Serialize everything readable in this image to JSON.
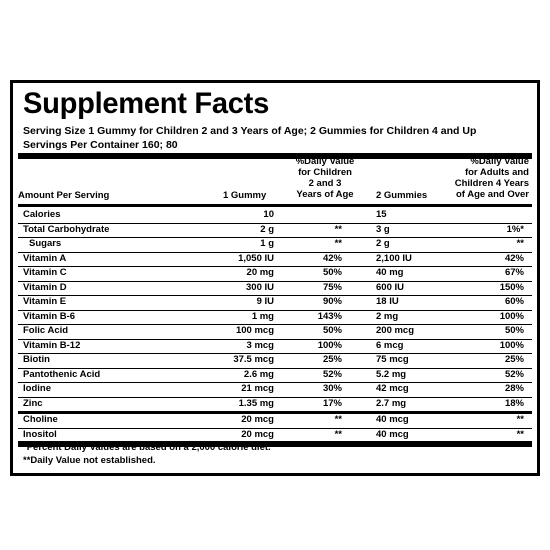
{
  "title": "Supplement Facts",
  "serving_size": "Serving Size 1 Gummy for Children 2 and 3 Years of Age; 2 Gummies for Children 4 and Up",
  "servings_per_container": "Servings Per Container 160; 80",
  "headers": {
    "amount": "Amount Per Serving",
    "qty1": "1 Gummy",
    "dv1": "%Daily Value\nfor Children\n2 and 3\nYears of Age",
    "qty2": "2 Gummies",
    "dv2": "%Daily Value\nfor Adults and\nChildren 4 Years\nof Age and Over"
  },
  "rows": [
    {
      "name": "Calories",
      "q1": "10",
      "d1": "",
      "q2": "15",
      "d2": ""
    },
    {
      "name": "Total Carbohydrate",
      "q1": "2 g",
      "d1": "**",
      "q2": "3 g",
      "d2": "1%*"
    },
    {
      "name": "Sugars",
      "q1": "1 g",
      "d1": "**",
      "q2": "2 g",
      "d2": "**",
      "indent": true
    },
    {
      "name": "Vitamin A",
      "q1": "1,050 IU",
      "d1": "42%",
      "q2": "2,100 IU",
      "d2": "42%"
    },
    {
      "name": "Vitamin C",
      "q1": "20 mg",
      "d1": "50%",
      "q2": "40 mg",
      "d2": "67%"
    },
    {
      "name": "Vitamin D",
      "q1": "300 IU",
      "d1": "75%",
      "q2": "600 IU",
      "d2": "150%"
    },
    {
      "name": "Vitamin E",
      "q1": "9 IU",
      "d1": "90%",
      "q2": "18 IU",
      "d2": "60%"
    },
    {
      "name": "Vitamin B-6",
      "q1": "1 mg",
      "d1": "143%",
      "q2": "2 mg",
      "d2": "100%"
    },
    {
      "name": "Folic Acid",
      "q1": "100 mcg",
      "d1": "50%",
      "q2": "200 mcg",
      "d2": "50%"
    },
    {
      "name": "Vitamin B-12",
      "q1": "3 mcg",
      "d1": "100%",
      "q2": "6 mcg",
      "d2": "100%"
    },
    {
      "name": "Biotin",
      "q1": "37.5 mcg",
      "d1": "25%",
      "q2": "75 mcg",
      "d2": "25%"
    },
    {
      "name": "Pantothenic Acid",
      "q1": "2.6 mg",
      "d1": "52%",
      "q2": "5.2 mg",
      "d2": "52%"
    },
    {
      "name": "Iodine",
      "q1": "21 mcg",
      "d1": "30%",
      "q2": "42 mcg",
      "d2": "28%"
    },
    {
      "name": "Zinc",
      "q1": "1.35 mg",
      "d1": "17%",
      "q2": "2.7 mg",
      "d2": "18%"
    },
    {
      "name": "Choline",
      "q1": "20 mcg",
      "d1": "**",
      "q2": "40 mcg",
      "d2": "**"
    },
    {
      "name": "Inositol",
      "q1": "20 mcg",
      "d1": "**",
      "q2": "40 mcg",
      "d2": "**"
    }
  ],
  "footnotes": [
    "*Percent Daily Values are based on a 2,000 calorie diet.",
    "**Daily Value not established."
  ]
}
